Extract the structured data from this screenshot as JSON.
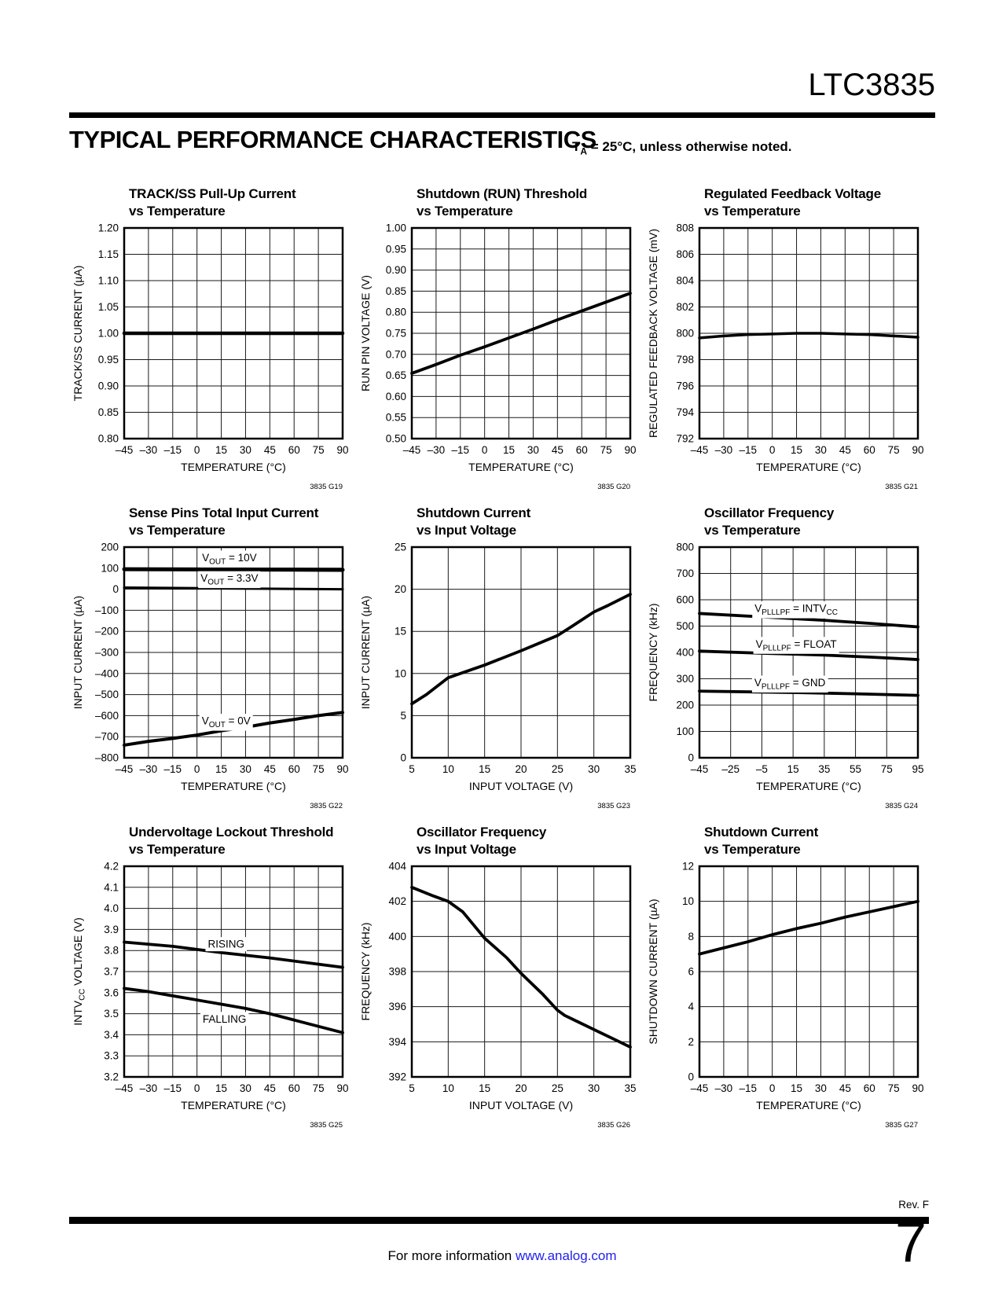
{
  "page": {
    "part_number": "LTC3835",
    "section_title": "TYPICAL PERFORMANCE CHARACTERISTICS",
    "note": {
      "pre": "T",
      "sub": "A",
      "rest": " = 25°C, unless otherwise noted."
    },
    "footer": {
      "rev": "Rev. F",
      "info_text": "For more information ",
      "info_link": "www.analog.com",
      "link_color": "#2020ee",
      "page_number": "7"
    }
  },
  "chart_data": [
    {
      "type": "line",
      "caption": "3835 G19",
      "title_line1": "TRACK/SS Pull-Up Current",
      "title_line2": "vs Temperature",
      "xlabel_parts": [
        {
          "t": "TEMPERATURE (°C)"
        }
      ],
      "ylabel_parts": [
        {
          "t": "TRACK/SS CURRENT (µA)"
        }
      ],
      "xlim": [
        -45,
        90
      ],
      "ylim": [
        0.8,
        1.2
      ],
      "xticks": [
        "–45",
        "–30",
        "–15",
        "0",
        "15",
        "30",
        "45",
        "60",
        "75",
        "90"
      ],
      "yticks": [
        "1.20",
        "1.15",
        "1.10",
        "1.05",
        "1.00",
        "0.95",
        "0.90",
        "0.85",
        "0.80"
      ],
      "series": [
        {
          "name": "track_ss_current",
          "width": 4.5,
          "points": [
            [
              -45,
              1.0
            ],
            [
              90,
              1.0
            ]
          ]
        }
      ]
    },
    {
      "type": "line",
      "caption": "3835 G20",
      "title_line1": "Shutdown (RUN) Threshold",
      "title_line2": "vs Temperature",
      "xlabel_parts": [
        {
          "t": "TEMPERATURE (°C)"
        }
      ],
      "ylabel_parts": [
        {
          "t": "RUN PIN VOLTAGE (V)"
        }
      ],
      "xlim": [
        -45,
        90
      ],
      "ylim": [
        0.5,
        1.0
      ],
      "xticks": [
        "–45",
        "–30",
        "–15",
        "0",
        "15",
        "30",
        "45",
        "60",
        "75",
        "90"
      ],
      "yticks": [
        "1.00",
        "0.95",
        "0.90",
        "0.85",
        "0.80",
        "0.75",
        "0.70",
        "0.65",
        "0.60",
        "0.55",
        "0.50"
      ],
      "series": [
        {
          "name": "run_threshold",
          "width": 3.8,
          "points": [
            [
              -45,
              0.655
            ],
            [
              -30,
              0.676
            ],
            [
              -15,
              0.698
            ],
            [
              0,
              0.718
            ],
            [
              15,
              0.739
            ],
            [
              30,
              0.76
            ],
            [
              45,
              0.782
            ],
            [
              60,
              0.803
            ],
            [
              75,
              0.824
            ],
            [
              90,
              0.845
            ]
          ]
        }
      ]
    },
    {
      "type": "line",
      "caption": "3835 G21",
      "title_line1": "Regulated Feedback Voltage",
      "title_line2": "vs Temperature",
      "xlabel_parts": [
        {
          "t": "TEMPERATURE (°C)"
        }
      ],
      "ylabel_parts": [
        {
          "t": "REGULATED FEEDBACK VOLTAGE (mV)"
        }
      ],
      "xlim": [
        -45,
        90
      ],
      "ylim": [
        792,
        808
      ],
      "xticks": [
        "–45",
        "–30",
        "–15",
        "0",
        "15",
        "30",
        "45",
        "60",
        "75",
        "90"
      ],
      "yticks": [
        "808",
        "806",
        "804",
        "802",
        "800",
        "798",
        "796",
        "794",
        "792"
      ],
      "series": [
        {
          "name": "feedback_voltage",
          "width": 3.5,
          "points": [
            [
              -45,
              799.65
            ],
            [
              -30,
              799.8
            ],
            [
              -15,
              799.9
            ],
            [
              0,
              799.95
            ],
            [
              15,
              800.0
            ],
            [
              30,
              800.0
            ],
            [
              45,
              799.95
            ],
            [
              60,
              799.9
            ],
            [
              75,
              799.8
            ],
            [
              90,
              799.7
            ]
          ]
        }
      ]
    },
    {
      "type": "line",
      "caption": "3835 G22",
      "title_line1": "Sense Pins Total Input Current",
      "title_line2": "vs Temperature",
      "xlabel_parts": [
        {
          "t": "TEMPERATURE (°C)"
        }
      ],
      "ylabel_parts": [
        {
          "t": "INPUT CURRENT (µA)"
        }
      ],
      "xlim": [
        -45,
        90
      ],
      "ylim": [
        -800,
        200
      ],
      "xticks": [
        "–45",
        "–30",
        "–15",
        "0",
        "15",
        "30",
        "45",
        "60",
        "75",
        "90"
      ],
      "yticks": [
        "200",
        "100",
        "0",
        "–100",
        "–200",
        "–300",
        "–400",
        "–500",
        "–600",
        "–700",
        "–800"
      ],
      "series": [
        {
          "name": "vout_10v",
          "width": 5,
          "points": [
            [
              -45,
              95
            ],
            [
              90,
              92
            ]
          ],
          "label": {
            "x": 20,
            "y": 150,
            "parts": [
              {
                "t": "V"
              },
              {
                "t": "OUT",
                "sub": true
              },
              {
                "t": " = 10V"
              }
            ]
          }
        },
        {
          "name": "vout_3v3",
          "width": 3,
          "points": [
            [
              -45,
              8
            ],
            [
              30,
              3
            ],
            [
              90,
              0
            ]
          ],
          "label": {
            "x": 20,
            "y": 52,
            "parts": [
              {
                "t": "V"
              },
              {
                "t": "OUT",
                "sub": true
              },
              {
                "t": " = 3.3V"
              }
            ]
          }
        },
        {
          "name": "vout_0v",
          "width": 4,
          "points": [
            [
              -45,
              -740
            ],
            [
              -30,
              -722
            ],
            [
              -15,
              -708
            ],
            [
              0,
              -692
            ],
            [
              15,
              -672
            ],
            [
              30,
              -655
            ],
            [
              45,
              -635
            ],
            [
              60,
              -618
            ],
            [
              75,
              -600
            ],
            [
              90,
              -585
            ]
          ],
          "label": {
            "x": 18,
            "y": -625,
            "parts": [
              {
                "t": "V"
              },
              {
                "t": "OUT",
                "sub": true
              },
              {
                "t": " = 0V"
              }
            ]
          }
        }
      ]
    },
    {
      "type": "line",
      "caption": "3835 G23",
      "title_line1": "Shutdown Current",
      "title_line2": "vs Input Voltage",
      "xlabel_parts": [
        {
          "t": "INPUT VOLTAGE (V)"
        }
      ],
      "ylabel_parts": [
        {
          "t": "INPUT CURRENT (µA)"
        }
      ],
      "xlim": [
        5,
        35
      ],
      "ylim": [
        0,
        25
      ],
      "xticks": [
        "5",
        "10",
        "15",
        "20",
        "25",
        "30",
        "35"
      ],
      "yticks": [
        "25",
        "20",
        "15",
        "10",
        "5",
        "0"
      ],
      "series": [
        {
          "name": "shutdown_current",
          "width": 3.8,
          "points": [
            [
              5,
              6.4
            ],
            [
              7,
              7.5
            ],
            [
              10,
              9.5
            ],
            [
              11,
              9.8
            ],
            [
              15,
              11.0
            ],
            [
              20,
              12.7
            ],
            [
              25,
              14.5
            ],
            [
              27,
              15.6
            ],
            [
              30,
              17.3
            ],
            [
              32,
              18.1
            ],
            [
              35,
              19.4
            ]
          ]
        }
      ]
    },
    {
      "type": "line",
      "caption": "3835 G24",
      "title_line1": "Oscillator Frequency",
      "title_line2": "vs Temperature",
      "xlabel_parts": [
        {
          "t": "TEMPERATURE (°C)"
        }
      ],
      "ylabel_parts": [
        {
          "t": "FREQUENCY (kHz)"
        }
      ],
      "xlim": [
        -45,
        95
      ],
      "ylim": [
        0,
        800
      ],
      "xticks": [
        "–45",
        "–25",
        "–5",
        "15",
        "35",
        "55",
        "75",
        "95"
      ],
      "yticks": [
        "800",
        "700",
        "600",
        "500",
        "400",
        "300",
        "200",
        "100",
        "0"
      ],
      "series": [
        {
          "name": "vplllpf_intvcc",
          "width": 3.8,
          "points": [
            [
              -45,
              548
            ],
            [
              -5,
              535
            ],
            [
              35,
              522
            ],
            [
              65,
              510
            ],
            [
              95,
              497
            ]
          ],
          "label": {
            "x": 17,
            "y": 567,
            "parts": [
              {
                "t": "V"
              },
              {
                "t": "PLLLPF",
                "sub": true
              },
              {
                "t": " = INTV"
              },
              {
                "t": "CC",
                "sub": true
              }
            ]
          }
        },
        {
          "name": "vplllpf_float",
          "width": 3.8,
          "points": [
            [
              -45,
              405
            ],
            [
              -5,
              397
            ],
            [
              35,
              390
            ],
            [
              65,
              382
            ],
            [
              95,
              373
            ]
          ],
          "label": {
            "x": 17,
            "y": 432,
            "parts": [
              {
                "t": "V"
              },
              {
                "t": "PLLLPF",
                "sub": true
              },
              {
                "t": " = FLOAT"
              }
            ]
          }
        },
        {
          "name": "vplllpf_gnd",
          "width": 3.8,
          "points": [
            [
              -45,
              253
            ],
            [
              15,
              248
            ],
            [
              55,
              243
            ],
            [
              95,
              237
            ]
          ],
          "label": {
            "x": 13,
            "y": 285,
            "parts": [
              {
                "t": "V"
              },
              {
                "t": "PLLLPF",
                "sub": true
              },
              {
                "t": " = GND"
              }
            ]
          }
        }
      ]
    },
    {
      "type": "line",
      "caption": "3835 G25",
      "title_line1": "Undervoltage Lockout Threshold",
      "title_line2": "vs Temperature",
      "xlabel_parts": [
        {
          "t": "TEMPERATURE (°C)"
        }
      ],
      "ylabel_parts": [
        {
          "t": "INTV"
        },
        {
          "t": "CC",
          "sub": true
        },
        {
          "t": " VOLTAGE (V)"
        }
      ],
      "xlim": [
        -45,
        90
      ],
      "ylim": [
        3.2,
        4.2
      ],
      "xticks": [
        "–45",
        "–30",
        "–15",
        "0",
        "15",
        "30",
        "45",
        "60",
        "75",
        "90"
      ],
      "yticks": [
        "4.2",
        "4.1",
        "4.0",
        "3.9",
        "3.8",
        "3.7",
        "3.6",
        "3.5",
        "3.4",
        "3.3",
        "3.2"
      ],
      "series": [
        {
          "name": "rising",
          "width": 3.8,
          "points": [
            [
              -45,
              3.84
            ],
            [
              -15,
              3.82
            ],
            [
              15,
              3.79
            ],
            [
              45,
              3.765
            ],
            [
              75,
              3.735
            ],
            [
              90,
              3.72
            ]
          ],
          "label": {
            "x": 18,
            "y": 3.83,
            "parts": [
              {
                "t": "RISING"
              }
            ]
          }
        },
        {
          "name": "falling",
          "width": 3.8,
          "points": [
            [
              -45,
              3.62
            ],
            [
              -30,
              3.605
            ],
            [
              -15,
              3.585
            ],
            [
              0,
              3.565
            ],
            [
              15,
              3.545
            ],
            [
              30,
              3.525
            ],
            [
              45,
              3.5
            ],
            [
              60,
              3.47
            ],
            [
              75,
              3.44
            ],
            [
              90,
              3.41
            ]
          ],
          "label": {
            "x": 17,
            "y": 3.475,
            "parts": [
              {
                "t": "FALLING"
              }
            ]
          }
        }
      ]
    },
    {
      "type": "line",
      "caption": "3835 G26",
      "title_line1": "Oscillator Frequency",
      "title_line2": "vs Input Voltage",
      "xlabel_parts": [
        {
          "t": "INPUT VOLTAGE (V)"
        }
      ],
      "ylabel_parts": [
        {
          "t": "FREQUENCY (kHz)"
        }
      ],
      "xlim": [
        5,
        35
      ],
      "ylim": [
        392,
        404
      ],
      "xticks": [
        "5",
        "10",
        "15",
        "20",
        "25",
        "30",
        "35"
      ],
      "yticks": [
        "404",
        "402",
        "400",
        "398",
        "396",
        "394",
        "392"
      ],
      "series": [
        {
          "name": "osc_frequency",
          "width": 3.8,
          "points": [
            [
              5,
              402.8
            ],
            [
              8,
              402.3
            ],
            [
              10,
              402.0
            ],
            [
              12,
              401.4
            ],
            [
              15,
              399.9
            ],
            [
              18,
              398.8
            ],
            [
              20,
              397.9
            ],
            [
              23,
              396.7
            ],
            [
              25,
              395.8
            ],
            [
              26,
              395.5
            ],
            [
              28,
              395.1
            ],
            [
              30,
              394.7
            ],
            [
              33,
              394.1
            ],
            [
              35,
              393.7
            ]
          ]
        }
      ]
    },
    {
      "type": "line",
      "caption": "3835 G27",
      "title_line1": "Shutdown Current",
      "title_line2": "vs Temperature",
      "xlabel_parts": [
        {
          "t": "TEMPERATURE (°C)"
        }
      ],
      "ylabel_parts": [
        {
          "t": "SHUTDOWN CURRENT (µA)"
        }
      ],
      "xlim": [
        -45,
        90
      ],
      "ylim": [
        0,
        12
      ],
      "xticks": [
        "–45",
        "–30",
        "–15",
        "0",
        "15",
        "30",
        "45",
        "60",
        "75",
        "90"
      ],
      "yticks": [
        "12",
        "10",
        "8",
        "6",
        "4",
        "2",
        "0"
      ],
      "series": [
        {
          "name": "shutdown_current",
          "width": 3.8,
          "points": [
            [
              -45,
              7.0
            ],
            [
              -30,
              7.35
            ],
            [
              -15,
              7.7
            ],
            [
              0,
              8.1
            ],
            [
              15,
              8.45
            ],
            [
              30,
              8.75
            ],
            [
              45,
              9.1
            ],
            [
              60,
              9.4
            ],
            [
              75,
              9.7
            ],
            [
              90,
              10.0
            ]
          ]
        }
      ]
    }
  ]
}
